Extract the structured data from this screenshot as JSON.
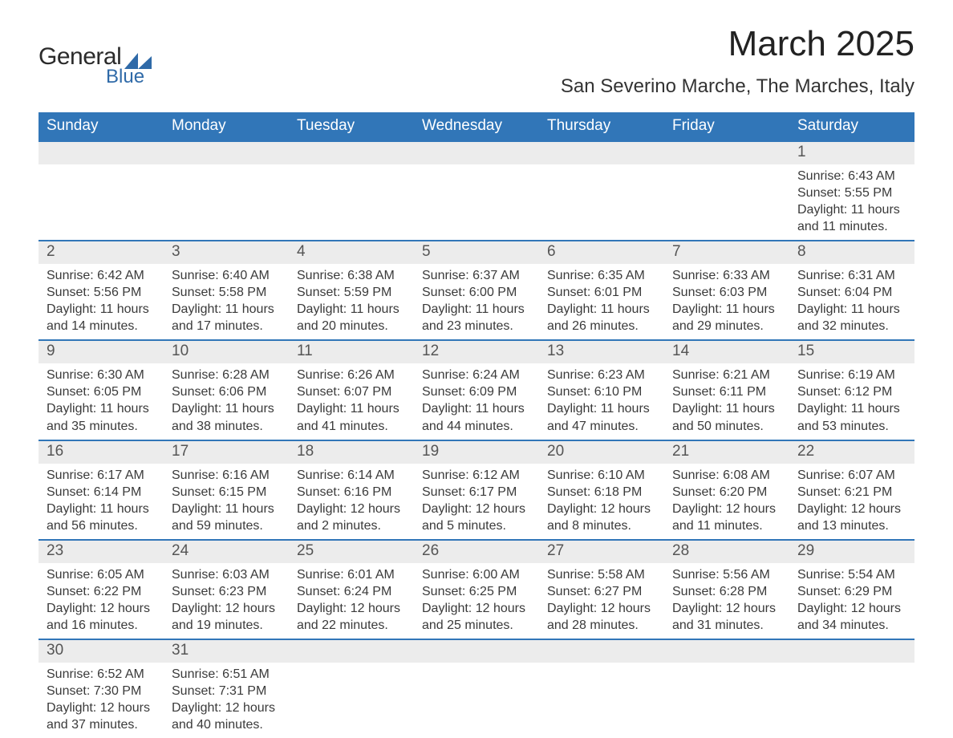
{
  "logo": {
    "main": "General",
    "sub": "Blue",
    "shape_color": "#2f6aa8"
  },
  "title": "March 2025",
  "location": "San Severino Marche, The Marches, Italy",
  "header_bg": "#3176b8",
  "header_fg": "#ffffff",
  "daynum_bg": "#ececec",
  "divider_color": "#3176b8",
  "text_color": "#3a3a3a",
  "font_family": "Arial, Helvetica, sans-serif",
  "title_fontsize": 44,
  "location_fontsize": 24,
  "header_fontsize": 19,
  "daynum_fontsize": 19,
  "content_fontsize": 16,
  "day_names": [
    "Sunday",
    "Monday",
    "Tuesday",
    "Wednesday",
    "Thursday",
    "Friday",
    "Saturday"
  ],
  "weeks": [
    [
      null,
      null,
      null,
      null,
      null,
      null,
      {
        "n": "1",
        "sunrise": "Sunrise: 6:43 AM",
        "sunset": "Sunset: 5:55 PM",
        "d1": "Daylight: 11 hours",
        "d2": "and 11 minutes."
      }
    ],
    [
      {
        "n": "2",
        "sunrise": "Sunrise: 6:42 AM",
        "sunset": "Sunset: 5:56 PM",
        "d1": "Daylight: 11 hours",
        "d2": "and 14 minutes."
      },
      {
        "n": "3",
        "sunrise": "Sunrise: 6:40 AM",
        "sunset": "Sunset: 5:58 PM",
        "d1": "Daylight: 11 hours",
        "d2": "and 17 minutes."
      },
      {
        "n": "4",
        "sunrise": "Sunrise: 6:38 AM",
        "sunset": "Sunset: 5:59 PM",
        "d1": "Daylight: 11 hours",
        "d2": "and 20 minutes."
      },
      {
        "n": "5",
        "sunrise": "Sunrise: 6:37 AM",
        "sunset": "Sunset: 6:00 PM",
        "d1": "Daylight: 11 hours",
        "d2": "and 23 minutes."
      },
      {
        "n": "6",
        "sunrise": "Sunrise: 6:35 AM",
        "sunset": "Sunset: 6:01 PM",
        "d1": "Daylight: 11 hours",
        "d2": "and 26 minutes."
      },
      {
        "n": "7",
        "sunrise": "Sunrise: 6:33 AM",
        "sunset": "Sunset: 6:03 PM",
        "d1": "Daylight: 11 hours",
        "d2": "and 29 minutes."
      },
      {
        "n": "8",
        "sunrise": "Sunrise: 6:31 AM",
        "sunset": "Sunset: 6:04 PM",
        "d1": "Daylight: 11 hours",
        "d2": "and 32 minutes."
      }
    ],
    [
      {
        "n": "9",
        "sunrise": "Sunrise: 6:30 AM",
        "sunset": "Sunset: 6:05 PM",
        "d1": "Daylight: 11 hours",
        "d2": "and 35 minutes."
      },
      {
        "n": "10",
        "sunrise": "Sunrise: 6:28 AM",
        "sunset": "Sunset: 6:06 PM",
        "d1": "Daylight: 11 hours",
        "d2": "and 38 minutes."
      },
      {
        "n": "11",
        "sunrise": "Sunrise: 6:26 AM",
        "sunset": "Sunset: 6:07 PM",
        "d1": "Daylight: 11 hours",
        "d2": "and 41 minutes."
      },
      {
        "n": "12",
        "sunrise": "Sunrise: 6:24 AM",
        "sunset": "Sunset: 6:09 PM",
        "d1": "Daylight: 11 hours",
        "d2": "and 44 minutes."
      },
      {
        "n": "13",
        "sunrise": "Sunrise: 6:23 AM",
        "sunset": "Sunset: 6:10 PM",
        "d1": "Daylight: 11 hours",
        "d2": "and 47 minutes."
      },
      {
        "n": "14",
        "sunrise": "Sunrise: 6:21 AM",
        "sunset": "Sunset: 6:11 PM",
        "d1": "Daylight: 11 hours",
        "d2": "and 50 minutes."
      },
      {
        "n": "15",
        "sunrise": "Sunrise: 6:19 AM",
        "sunset": "Sunset: 6:12 PM",
        "d1": "Daylight: 11 hours",
        "d2": "and 53 minutes."
      }
    ],
    [
      {
        "n": "16",
        "sunrise": "Sunrise: 6:17 AM",
        "sunset": "Sunset: 6:14 PM",
        "d1": "Daylight: 11 hours",
        "d2": "and 56 minutes."
      },
      {
        "n": "17",
        "sunrise": "Sunrise: 6:16 AM",
        "sunset": "Sunset: 6:15 PM",
        "d1": "Daylight: 11 hours",
        "d2": "and 59 minutes."
      },
      {
        "n": "18",
        "sunrise": "Sunrise: 6:14 AM",
        "sunset": "Sunset: 6:16 PM",
        "d1": "Daylight: 12 hours",
        "d2": "and 2 minutes."
      },
      {
        "n": "19",
        "sunrise": "Sunrise: 6:12 AM",
        "sunset": "Sunset: 6:17 PM",
        "d1": "Daylight: 12 hours",
        "d2": "and 5 minutes."
      },
      {
        "n": "20",
        "sunrise": "Sunrise: 6:10 AM",
        "sunset": "Sunset: 6:18 PM",
        "d1": "Daylight: 12 hours",
        "d2": "and 8 minutes."
      },
      {
        "n": "21",
        "sunrise": "Sunrise: 6:08 AM",
        "sunset": "Sunset: 6:20 PM",
        "d1": "Daylight: 12 hours",
        "d2": "and 11 minutes."
      },
      {
        "n": "22",
        "sunrise": "Sunrise: 6:07 AM",
        "sunset": "Sunset: 6:21 PM",
        "d1": "Daylight: 12 hours",
        "d2": "and 13 minutes."
      }
    ],
    [
      {
        "n": "23",
        "sunrise": "Sunrise: 6:05 AM",
        "sunset": "Sunset: 6:22 PM",
        "d1": "Daylight: 12 hours",
        "d2": "and 16 minutes."
      },
      {
        "n": "24",
        "sunrise": "Sunrise: 6:03 AM",
        "sunset": "Sunset: 6:23 PM",
        "d1": "Daylight: 12 hours",
        "d2": "and 19 minutes."
      },
      {
        "n": "25",
        "sunrise": "Sunrise: 6:01 AM",
        "sunset": "Sunset: 6:24 PM",
        "d1": "Daylight: 12 hours",
        "d2": "and 22 minutes."
      },
      {
        "n": "26",
        "sunrise": "Sunrise: 6:00 AM",
        "sunset": "Sunset: 6:25 PM",
        "d1": "Daylight: 12 hours",
        "d2": "and 25 minutes."
      },
      {
        "n": "27",
        "sunrise": "Sunrise: 5:58 AM",
        "sunset": "Sunset: 6:27 PM",
        "d1": "Daylight: 12 hours",
        "d2": "and 28 minutes."
      },
      {
        "n": "28",
        "sunrise": "Sunrise: 5:56 AM",
        "sunset": "Sunset: 6:28 PM",
        "d1": "Daylight: 12 hours",
        "d2": "and 31 minutes."
      },
      {
        "n": "29",
        "sunrise": "Sunrise: 5:54 AM",
        "sunset": "Sunset: 6:29 PM",
        "d1": "Daylight: 12 hours",
        "d2": "and 34 minutes."
      }
    ],
    [
      {
        "n": "30",
        "sunrise": "Sunrise: 6:52 AM",
        "sunset": "Sunset: 7:30 PM",
        "d1": "Daylight: 12 hours",
        "d2": "and 37 minutes."
      },
      {
        "n": "31",
        "sunrise": "Sunrise: 6:51 AM",
        "sunset": "Sunset: 7:31 PM",
        "d1": "Daylight: 12 hours",
        "d2": "and 40 minutes."
      },
      null,
      null,
      null,
      null,
      null
    ]
  ]
}
